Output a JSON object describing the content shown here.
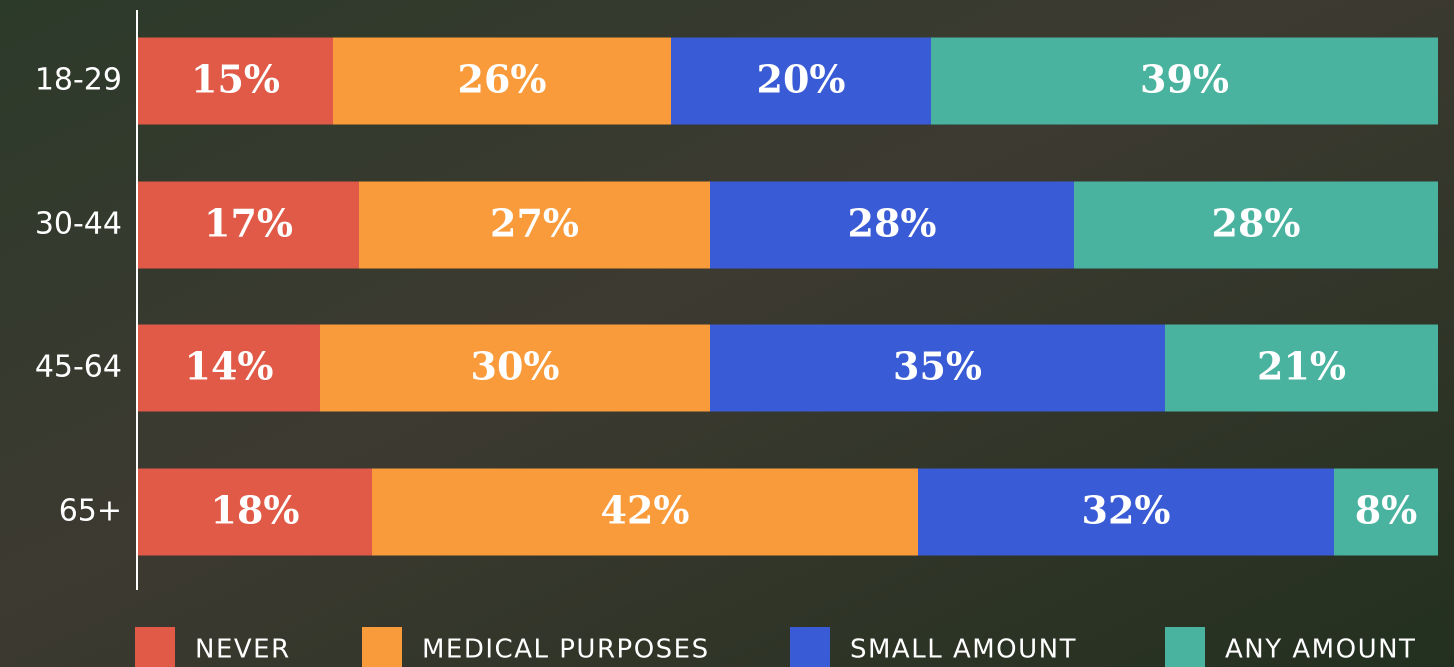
{
  "chart_data": {
    "type": "stacked-bar",
    "categories": [
      "18-29",
      "30-44",
      "45-64",
      "65+"
    ],
    "series": [
      {
        "name": "NEVER",
        "color": "#e05a47",
        "values": [
          15,
          17,
          14,
          18
        ],
        "value_labels": [
          "15%",
          "17%",
          "14%",
          "18%"
        ]
      },
      {
        "name": "MEDICAL PURPOSES",
        "color": "#f99b3a",
        "values": [
          26,
          27,
          30,
          42
        ],
        "value_labels": [
          "26%",
          "27%",
          "30%",
          "42%"
        ]
      },
      {
        "name": "SMALL AMOUNT",
        "color": "#3a5bd6",
        "values": [
          20,
          28,
          35,
          32
        ],
        "value_labels": [
          "20%",
          "28%",
          "35%",
          "32%"
        ]
      },
      {
        "name": "ANY AMOUNT",
        "color": "#49b3a0",
        "values": [
          39,
          28,
          21,
          8
        ],
        "value_labels": [
          "39%",
          "28%",
          "21%",
          "8%"
        ]
      }
    ],
    "xlim": [
      0,
      100
    ]
  }
}
